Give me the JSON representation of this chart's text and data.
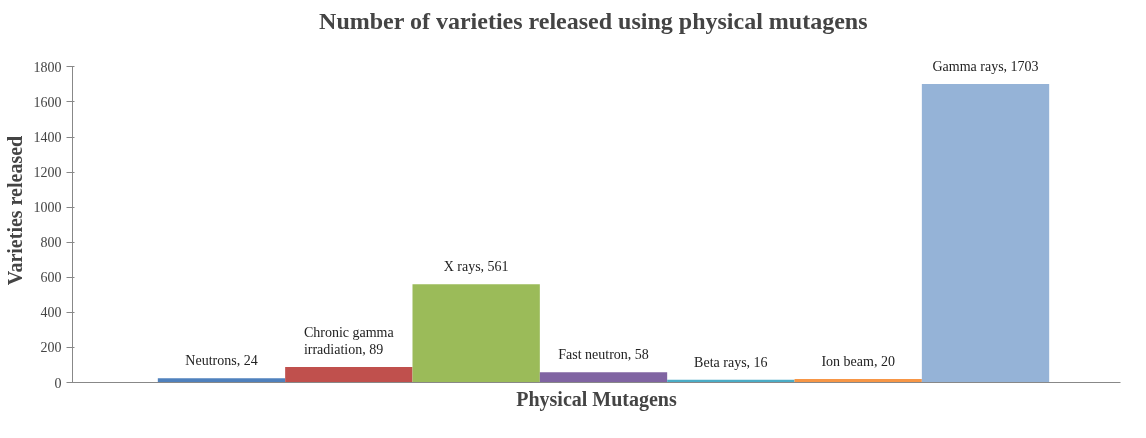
{
  "chart_data": {
    "type": "bar",
    "title": "Number  of varieties released using physical mutagens",
    "xlabel": "Physical Mutagens",
    "ylabel": "Varieties released",
    "categories": [
      null,
      null,
      null,
      null,
      null,
      null,
      null
    ],
    "values": [
      24,
      89,
      561,
      58,
      16,
      20,
      1703
    ],
    "colors": [
      "#4f81bd",
      "#c0504d",
      "#9bbb59",
      "#8064a2",
      "#4bacc6",
      "#f79646",
      "#95b3d7"
    ],
    "value_labels": [
      "Neutrons, 24",
      "Chronic gamma\nirradiation, 89",
      "X rays, 561",
      "Fast neutron, 58",
      "Beta rays, 16",
      "Ion beam, 20",
      "Gamma rays, 1703"
    ],
    "ylim": [
      0,
      1800
    ],
    "yticks": [
      0,
      200,
      400,
      600,
      800,
      1000,
      1200,
      1400,
      1600,
      1800
    ],
    "grid": false
  }
}
